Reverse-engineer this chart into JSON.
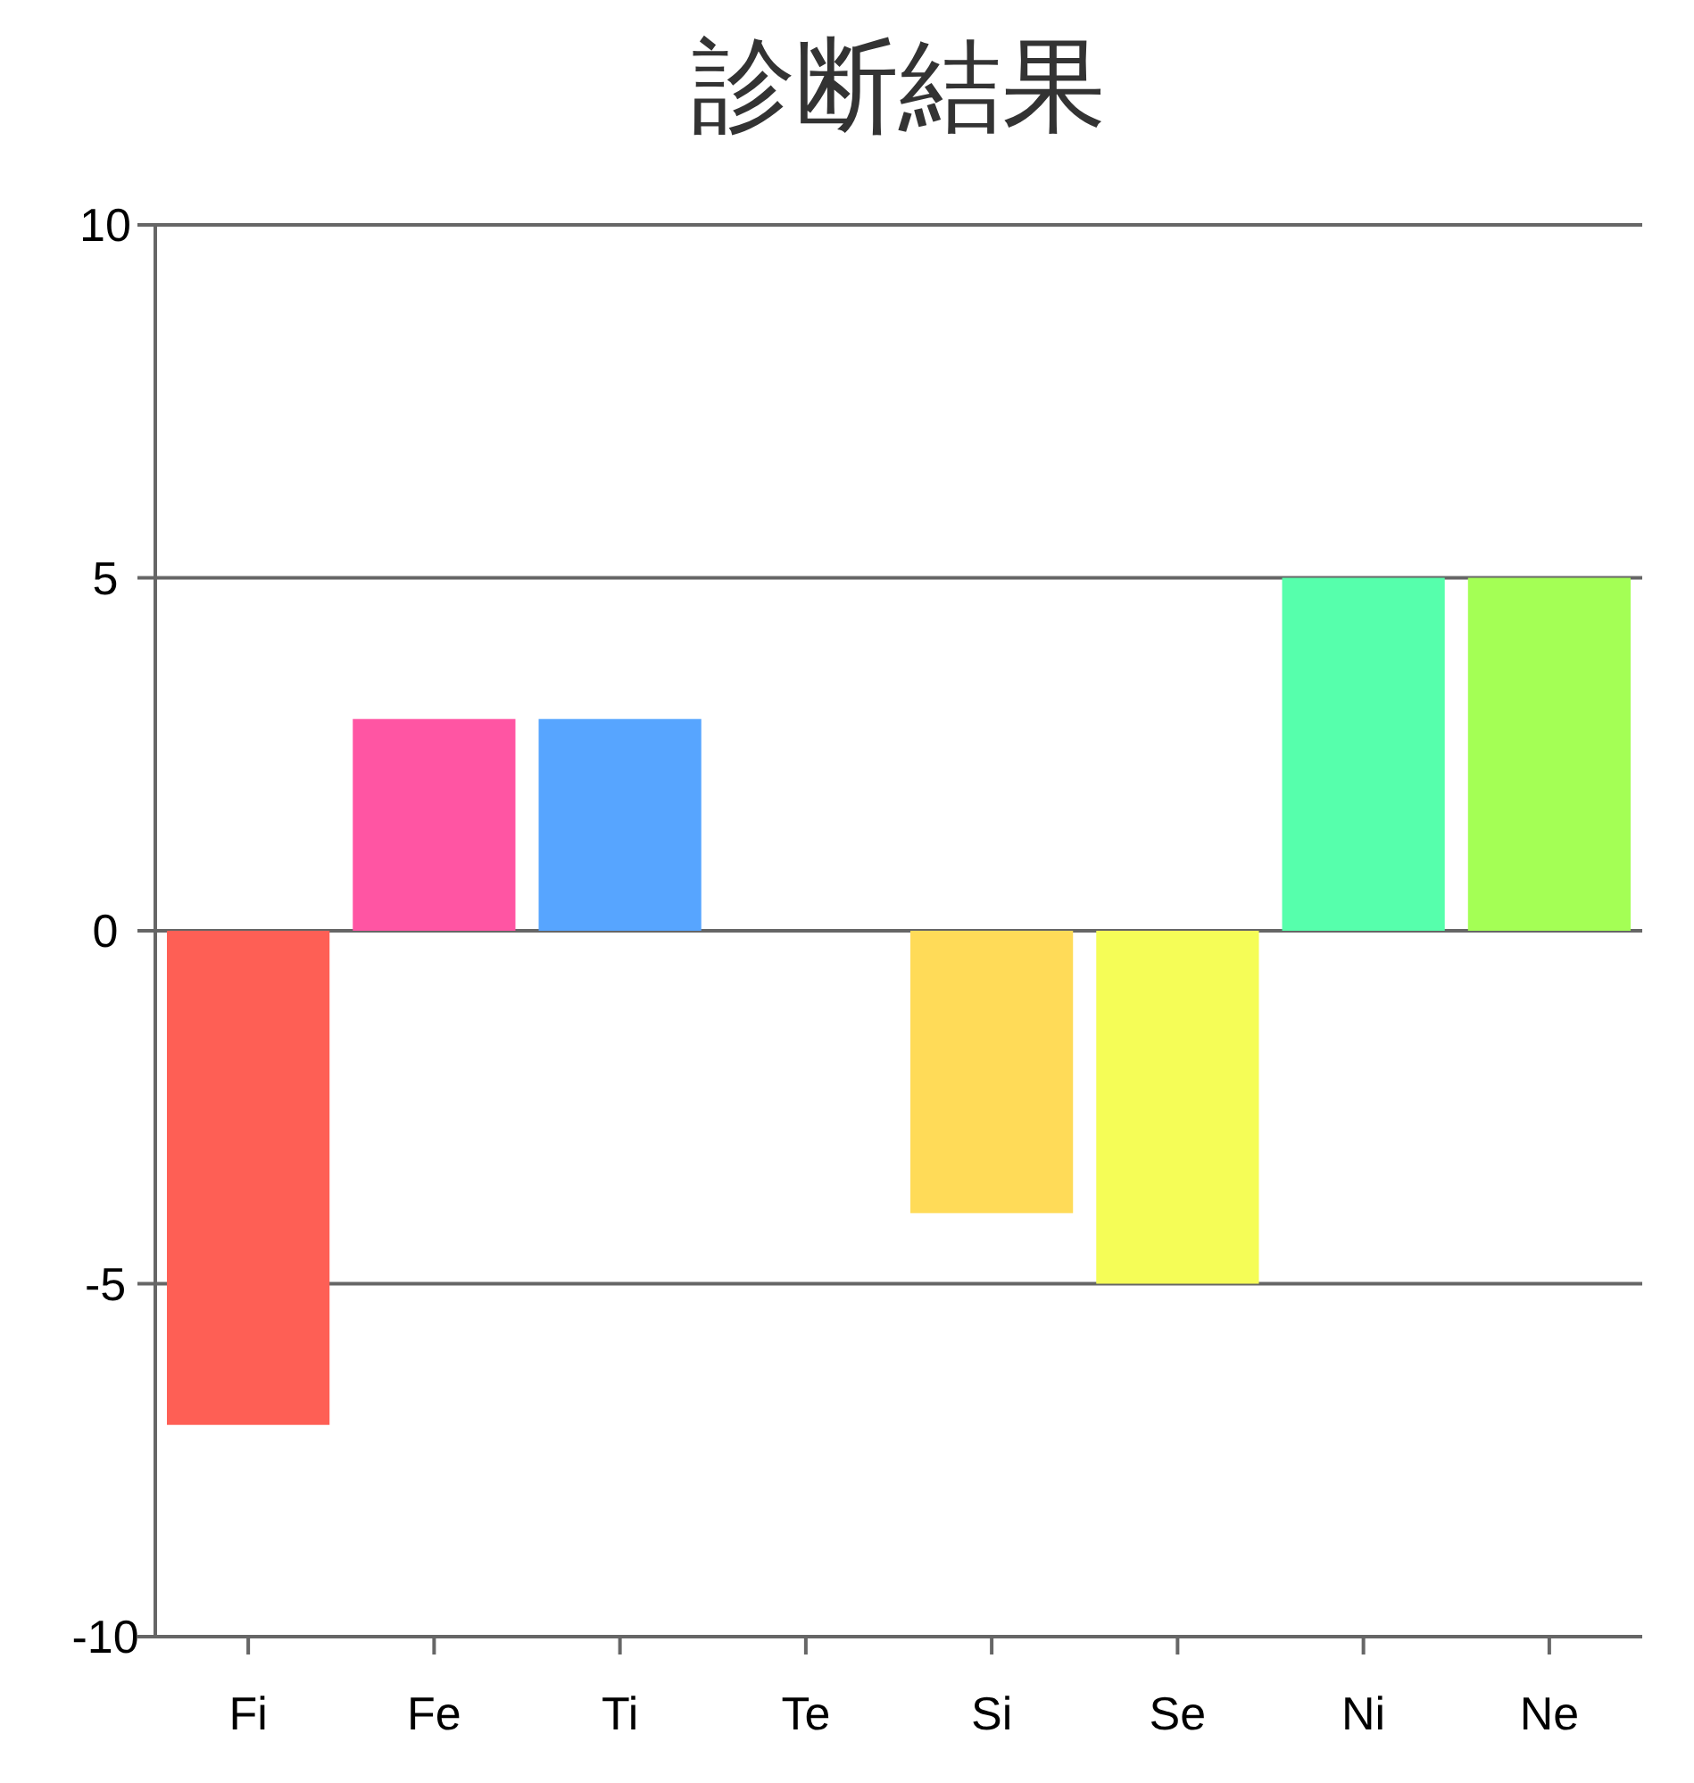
{
  "chart_data": {
    "type": "bar",
    "title": "診断結果",
    "categories": [
      "Fi",
      "Fe",
      "Ti",
      "Te",
      "Si",
      "Se",
      "Ni",
      "Ne"
    ],
    "values": [
      -7,
      3,
      3,
      0,
      -4,
      -5,
      5,
      5
    ],
    "colors": [
      "#fe5f55",
      "#ff55a3",
      "#57a5ff",
      "#55fff0",
      "#ffdb58",
      "#f5fd57",
      "#56ffac",
      "#a4ff55"
    ],
    "ylim": [
      -10,
      10
    ],
    "yticks": [
      -10,
      -5,
      0,
      5,
      10
    ],
    "grid": "y"
  }
}
